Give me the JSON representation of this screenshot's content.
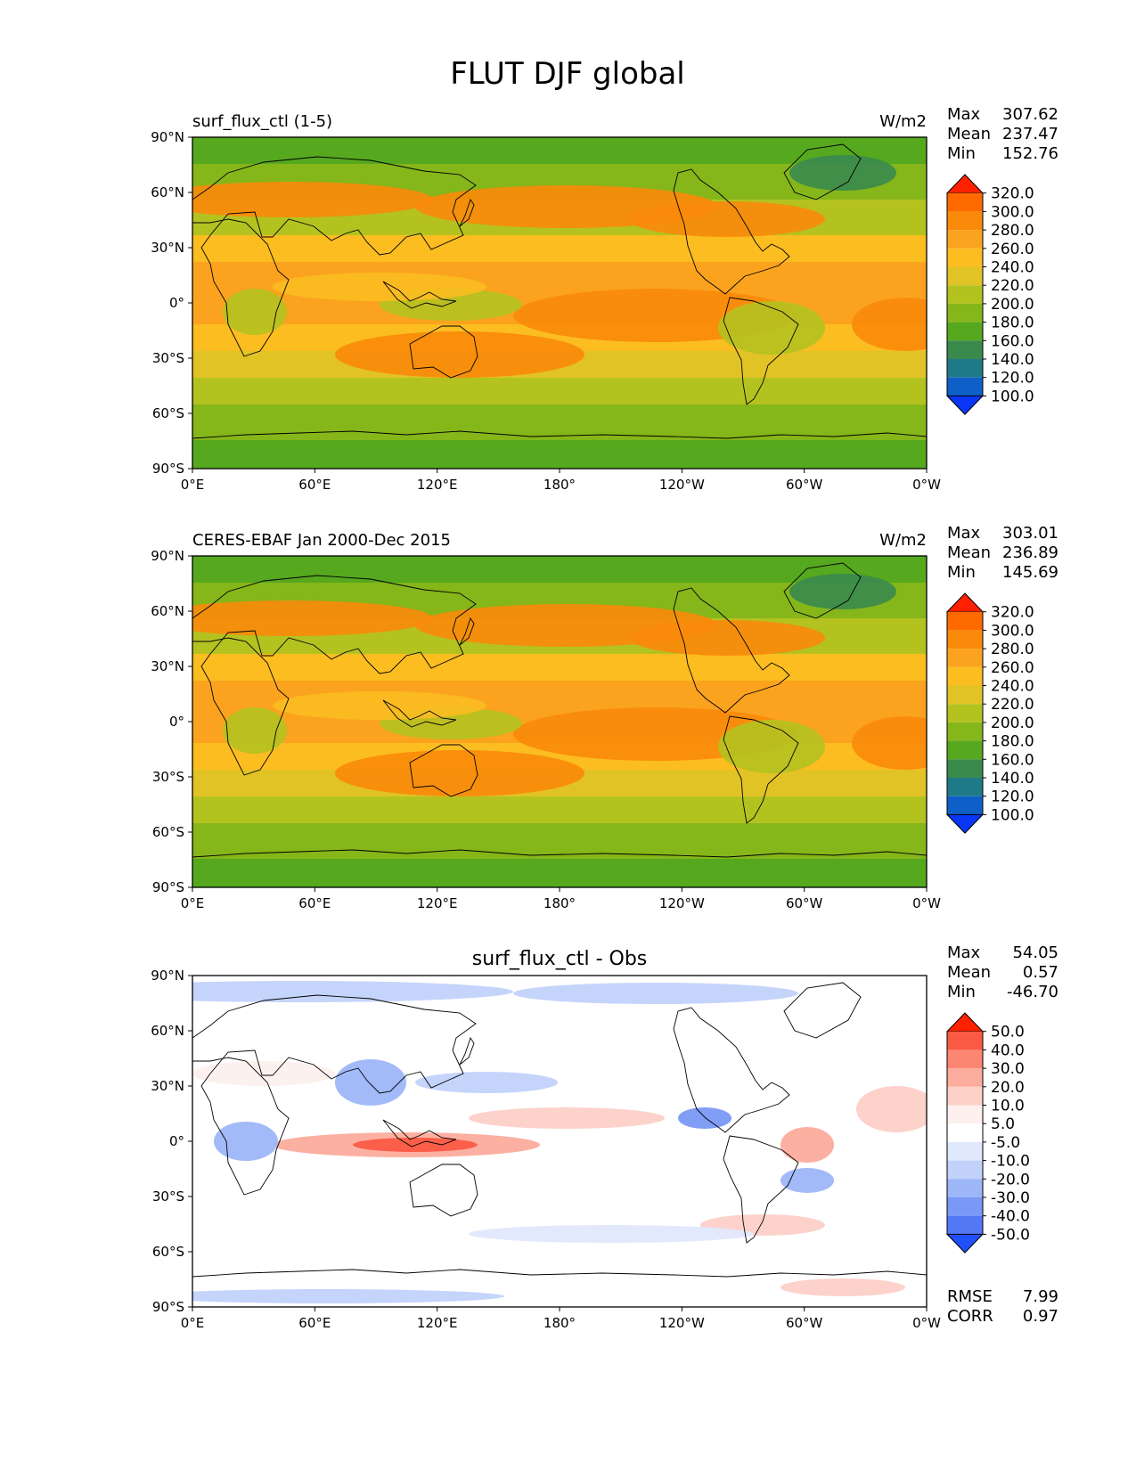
{
  "figure": {
    "title": "FLUT DJF global"
  },
  "x_ticks": [
    "0°E",
    "60°E",
    "120°E",
    "180°",
    "120°W",
    "60°W",
    "0°W"
  ],
  "y_ticks": [
    "90°N",
    "60°N",
    "30°N",
    "0°",
    "30°S",
    "60°S",
    "90°S"
  ],
  "panels": [
    {
      "id": "test",
      "left_title": "surf_flux_ctl (1-5)",
      "center_title": "",
      "units": "W/m2",
      "stats": {
        "max_label": "Max",
        "max": "307.62",
        "mean_label": "Mean",
        "mean": "237.47",
        "min_label": "Min",
        "min": "152.76"
      },
      "colorbar": {
        "labels": [
          "320.0",
          "300.0",
          "280.0",
          "260.0",
          "240.0",
          "220.0",
          "200.0",
          "180.0",
          "160.0",
          "140.0",
          "120.0",
          "100.0"
        ],
        "colors": [
          "#ff2000",
          "#ff6a00",
          "#fa8a0a",
          "#fba31e",
          "#fbbd20",
          "#e1c326",
          "#b4c220",
          "#85b61a",
          "#56a81e",
          "#3a8a4e",
          "#1f7a88",
          "#0e60c8",
          "#0a36f8"
        ]
      }
    },
    {
      "id": "ref",
      "left_title": "CERES-EBAF Jan 2000-Dec 2015",
      "center_title": "",
      "units": "W/m2",
      "stats": {
        "max_label": "Max",
        "max": "303.01",
        "mean_label": "Mean",
        "mean": "236.89",
        "min_label": "Min",
        "min": "145.69"
      },
      "colorbar": {
        "labels": [
          "320.0",
          "300.0",
          "280.0",
          "260.0",
          "240.0",
          "220.0",
          "200.0",
          "180.0",
          "160.0",
          "140.0",
          "120.0",
          "100.0"
        ],
        "colors": [
          "#ff2000",
          "#ff6a00",
          "#fa8a0a",
          "#fba31e",
          "#fbbd20",
          "#e1c326",
          "#b4c220",
          "#85b61a",
          "#56a81e",
          "#3a8a4e",
          "#1f7a88",
          "#0e60c8",
          "#0a36f8"
        ]
      }
    },
    {
      "id": "diff",
      "left_title": "",
      "center_title": "surf_flux_ctl - Obs",
      "units": "",
      "stats": {
        "max_label": "Max",
        "max": "54.05",
        "mean_label": "Mean",
        "mean": "0.57",
        "min_label": "Min",
        "min": "-46.70"
      },
      "rmse_label": "RMSE",
      "rmse": "7.99",
      "corr_label": "CORR",
      "corr": "0.97",
      "colorbar": {
        "labels": [
          "50.0",
          "40.0",
          "30.0",
          "20.0",
          "10.0",
          "5.0",
          "-5.0",
          "-10.0",
          "-20.0",
          "-30.0",
          "-40.0",
          "-50.0"
        ],
        "colors": [
          "#ff2000",
          "#fb5a44",
          "#fb8672",
          "#fcac9c",
          "#fdd0c8",
          "#fdf0ee",
          "#ffffff",
          "#e0e8fc",
          "#c2d2fb",
          "#9db6f8",
          "#7a98f6",
          "#5478f5",
          "#2050f8"
        ]
      }
    }
  ]
}
